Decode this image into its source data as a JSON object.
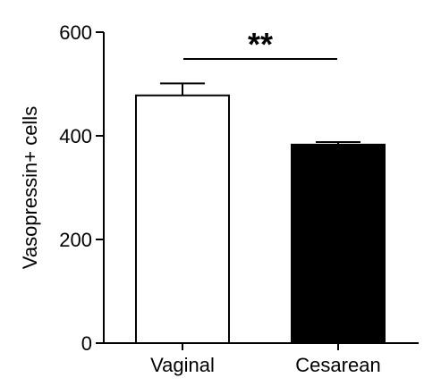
{
  "chart_data": {
    "type": "bar",
    "title": "",
    "xlabel": "",
    "ylabel": "Vasopressin+ cells",
    "categories": [
      "Vaginal",
      "Cesarean"
    ],
    "values": [
      478,
      383
    ],
    "errors": [
      23,
      5
    ],
    "bar_fills": [
      "#ffffff",
      "#000000"
    ],
    "bar_stroke": "#000000",
    "ylim": [
      0,
      600
    ],
    "yticks": [
      0,
      200,
      400,
      600
    ],
    "ytick_labels": [
      "0",
      "200",
      "400",
      "600"
    ],
    "significance": {
      "label": "**",
      "between": [
        "Vaginal",
        "Cesarean"
      ]
    },
    "grid": false,
    "legend": "none"
  }
}
